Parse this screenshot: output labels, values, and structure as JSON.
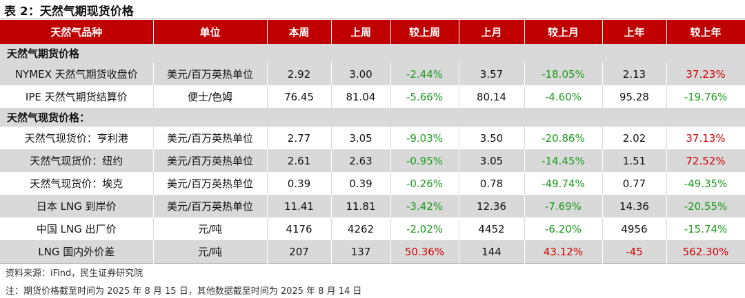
{
  "title": "表 2：天然气期现货价格",
  "table": {
    "header": [
      "天然气品种",
      "单位",
      "本周",
      "上周",
      "较上周",
      "上月",
      "较上月",
      "上年",
      "较上年"
    ],
    "sections": [
      {
        "title": "天然气期货价格",
        "rows": [
          [
            "NYMEX 天然气期货收盘价",
            "美元/百万英热单位",
            "2.92",
            "3.00",
            "-2.44%",
            "3.57",
            "-18.05%",
            "2.13",
            "37.23%"
          ],
          [
            "IPE 天然气期货结算价",
            "便士/色姆",
            "76.45",
            "81.04",
            "-5.66%",
            "80.14",
            "-4.60%",
            "95.28",
            "-19.76%"
          ]
        ]
      },
      {
        "title": "天然气现货价格：",
        "rows": [
          [
            "天然气现货价：亨利港",
            "美元/百万英热单位",
            "2.77",
            "3.05",
            "-9.03%",
            "3.50",
            "-20.86%",
            "2.02",
            "37.13%"
          ],
          [
            "天然气现货价：纽约",
            "美元/百万英热单位",
            "2.61",
            "2.63",
            "-0.95%",
            "3.05",
            "-14.45%",
            "1.51",
            "72.52%"
          ],
          [
            "天然气现货价：埃克",
            "美元/百万英热单位",
            "0.39",
            "0.39",
            "-0.26%",
            "0.78",
            "-49.74%",
            "0.77",
            "-49.35%"
          ],
          [
            "日本 LNG 到岸价",
            "美元/百万英热单位",
            "11.41",
            "11.81",
            "-3.42%",
            "12.36",
            "-7.69%",
            "14.36",
            "-20.55%"
          ],
          [
            "中国 LNG 出厂价",
            "元/吨",
            "4176",
            "4262",
            "-2.02%",
            "4452",
            "-6.20%",
            "4956",
            "-15.74%"
          ],
          [
            "LNG 国内外价差",
            "元/吨",
            "207",
            "137",
            "50.36%",
            "144",
            "43.12%",
            "-45",
            "562.30%"
          ]
        ]
      }
    ]
  },
  "source": "资料来源：iFind，民生证券研究院",
  "note": "注：期货价格截至时间为 2025 年 8 月 15 日，其他数据截至时间为 2025 年 8 月 14 日"
}
